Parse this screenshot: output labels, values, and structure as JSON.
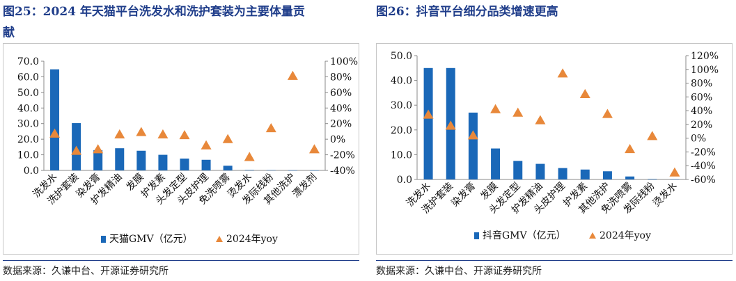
{
  "left": {
    "title_line1": "图25：2024 年天猫平台洗发水和洗护套装为主要体量贡",
    "title_line2": "献",
    "source": "数据来源：久谦中台、开源证券研究所",
    "chart_data": {
      "type": "bar",
      "categories": [
        "洗发水",
        "洗护套装",
        "染发膏",
        "护发精油",
        "发膜",
        "护发素",
        "头发定型",
        "头皮护理",
        "免洗喷雾",
        "烫发水",
        "发际线粉",
        "其他洗护",
        "漂发剂"
      ],
      "series": [
        {
          "name": "天猫GMV（亿元）",
          "type": "bar",
          "axis": "left",
          "values": [
            64.8,
            30.3,
            13.0,
            14.2,
            12.6,
            10.0,
            7.6,
            6.8,
            3.0,
            0.3,
            0.2,
            0.1,
            0.05
          ]
        },
        {
          "name": "2024年yoy",
          "type": "scatter",
          "axis": "right",
          "values": [
            7,
            -15,
            -13,
            6,
            9,
            6,
            5,
            -8,
            0,
            -23,
            14,
            81,
            -13
          ]
        }
      ],
      "ylim_left": [
        0,
        70
      ],
      "ylim_right": [
        -40,
        100
      ],
      "yticks_left": [
        "0.0",
        "10.0",
        "20.0",
        "30.0",
        "40.0",
        "50.0",
        "60.0",
        "70.0"
      ],
      "yticks_right": [
        "-40%",
        "-20%",
        "0%",
        "20%",
        "40%",
        "60%",
        "80%",
        "100%"
      ],
      "legend_position": "bottom",
      "grid": false,
      "colors": {
        "bar": "#1a68b8",
        "marker": "#e8883a"
      }
    }
  },
  "right": {
    "title": "图26：抖音平台细分品类增速更高",
    "source": "数据来源：久谦中台、开源证券研究所",
    "chart_data": {
      "type": "bar",
      "categories": [
        "洗发水",
        "洗护套装",
        "染发膏",
        "发膜",
        "头发定型",
        "护发精油",
        "头皮护理",
        "护发素",
        "其他洗护",
        "免洗喷雾",
        "发际线粉",
        "烫发水"
      ],
      "series": [
        {
          "name": "抖音GMV（亿元）",
          "type": "bar",
          "axis": "left",
          "values": [
            45.0,
            45.0,
            27.0,
            12.5,
            7.5,
            6.3,
            4.6,
            4.0,
            3.3,
            1.2,
            0.2,
            0.1
          ]
        },
        {
          "name": "2024年yoy",
          "type": "scatter",
          "axis": "right",
          "values": [
            34,
            18,
            4,
            42,
            37,
            26,
            94,
            64,
            35,
            -16,
            3,
            -50
          ]
        }
      ],
      "ylim_left": [
        0,
        50
      ],
      "ylim_right": [
        -60,
        120
      ],
      "yticks_left": [
        "0.0",
        "10.0",
        "20.0",
        "30.0",
        "40.0",
        "50.0"
      ],
      "yticks_right": [
        "-60%",
        "-40%",
        "-20%",
        "0%",
        "20%",
        "40%",
        "60%",
        "80%",
        "100%",
        "120%"
      ],
      "legend_position": "bottom",
      "grid": false,
      "colors": {
        "bar": "#1a68b8",
        "marker": "#e8883a"
      }
    }
  }
}
